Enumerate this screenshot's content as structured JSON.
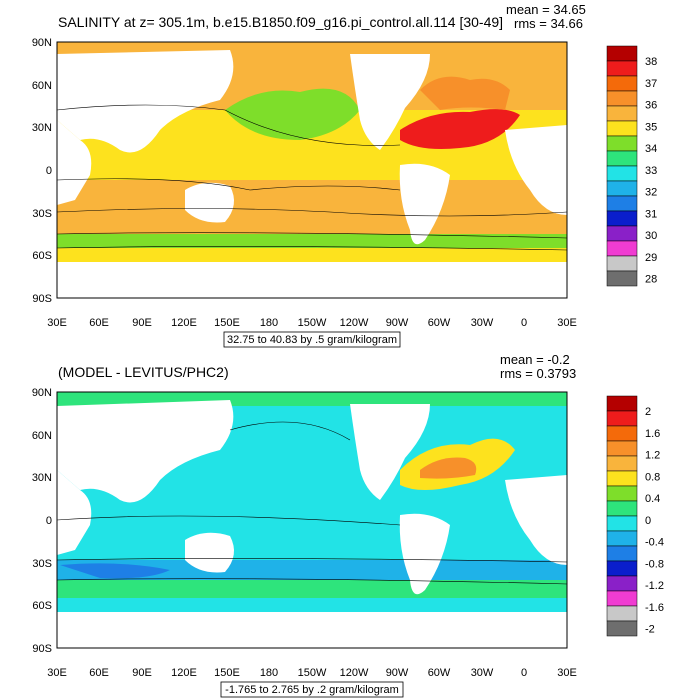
{
  "colors": {
    "ocean_top": "#f5c53c",
    "ocean_bot": "#22e3e6",
    "land": "#ffffff",
    "contour": "#000000"
  },
  "panel1": {
    "title": "SALINITY at z= 305.1m, b.e15.B1850.f09_g16.pi_control.all.114 [30-49]",
    "mean": "mean = 34.65",
    "rms": "rms = 34.66",
    "range_label": "32.75 to 40.83 by .5 gram/kilogram",
    "colorbar_labels": [
      "38",
      "37",
      "36",
      "35",
      "34",
      "33",
      "32",
      "31",
      "30",
      "29",
      "28"
    ]
  },
  "panel2": {
    "title": "(MODEL - LEVITUS/PHC2)",
    "mean": "mean = -0.2",
    "rms": "rms = 0.3793",
    "range_label": "-1.765 to 2.765 by .2 gram/kilogram",
    "colorbar_labels": [
      "2",
      "1.6",
      "1.2",
      "0.8",
      "0.4",
      "0",
      "-0.4",
      "-0.8",
      "-1.2",
      "-1.6",
      "-2"
    ]
  },
  "axes": {
    "lon_ticks": [
      "30E",
      "60E",
      "90E",
      "120E",
      "150E",
      "180",
      "150W",
      "120W",
      "90W",
      "60W",
      "30W",
      "0",
      "30E"
    ],
    "lat_ticks": [
      "90N",
      "60N",
      "30N",
      "0",
      "30S",
      "60S",
      "90S"
    ]
  },
  "colorbar_colors": [
    "#b40000",
    "#ee1c1c",
    "#f46a0a",
    "#f7902a",
    "#f9b43c",
    "#fde21e",
    "#7ede2a",
    "#2ee47c",
    "#22e3e6",
    "#1fb2e8",
    "#1e7fe6",
    "#0a1ecc",
    "#8a20c8",
    "#f03cd2",
    "#c8c8c8",
    "#6e6e6e"
  ]
}
